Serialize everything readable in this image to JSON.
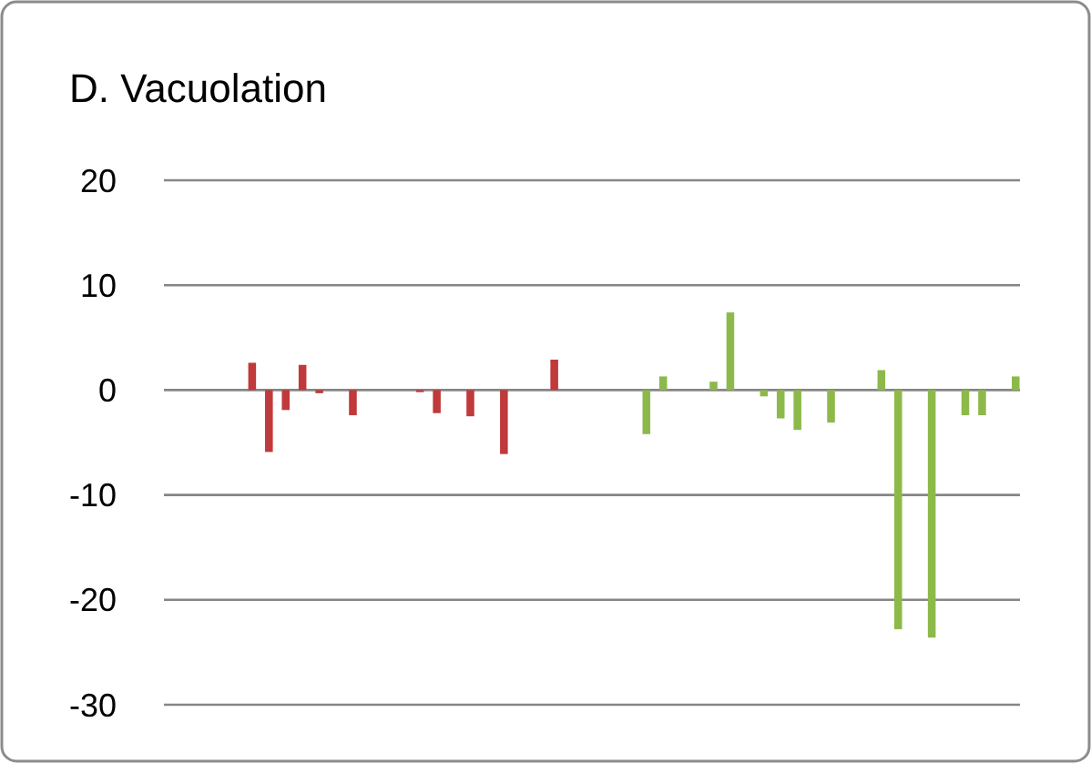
{
  "chart_data": {
    "type": "bar",
    "title": "D. Vacuolation",
    "categories": [
      null,
      null,
      null,
      null,
      null,
      null,
      null,
      null,
      null,
      null,
      null,
      null,
      null,
      null,
      null,
      null,
      null,
      null,
      null,
      null,
      null,
      null,
      null,
      null,
      null,
      null,
      null,
      null,
      null,
      null,
      null,
      null,
      null,
      null,
      null,
      null,
      null,
      null,
      null,
      null,
      null,
      null,
      null,
      null,
      null,
      null,
      null,
      null,
      null,
      null,
      null
    ],
    "series": [
      {
        "color": "#c0393b",
        "values": [
          null,
          null,
          null,
          null,
          null,
          2.6,
          -5.9,
          -1.9,
          2.4,
          -0.3,
          null,
          -2.4,
          null,
          null,
          null,
          -0.2,
          -2.2,
          null,
          -2.5,
          null,
          -6.1,
          null,
          null,
          2.9,
          null,
          null,
          null,
          null,
          null,
          null,
          null,
          null,
          null,
          null,
          null,
          null,
          null,
          null,
          null,
          null,
          null,
          null,
          null,
          null,
          null,
          null,
          null,
          null,
          null,
          null,
          null
        ]
      },
      {
        "color": "#8db94a",
        "values": [
          null,
          null,
          null,
          null,
          null,
          null,
          null,
          null,
          null,
          null,
          null,
          null,
          null,
          null,
          null,
          null,
          null,
          null,
          null,
          null,
          null,
          null,
          null,
          null,
          null,
          null,
          null,
          null,
          -4.2,
          1.3,
          null,
          null,
          0.8,
          7.4,
          null,
          -0.6,
          -2.7,
          -3.8,
          null,
          -3.1,
          null,
          null,
          1.9,
          -22.8,
          null,
          -23.6,
          null,
          -2.4,
          -2.4,
          null,
          1.3
        ]
      }
    ],
    "ylim": [
      -30,
      20
    ],
    "yticks": [
      -30,
      -20,
      -10,
      0,
      10,
      20
    ],
    "grid": "y"
  }
}
